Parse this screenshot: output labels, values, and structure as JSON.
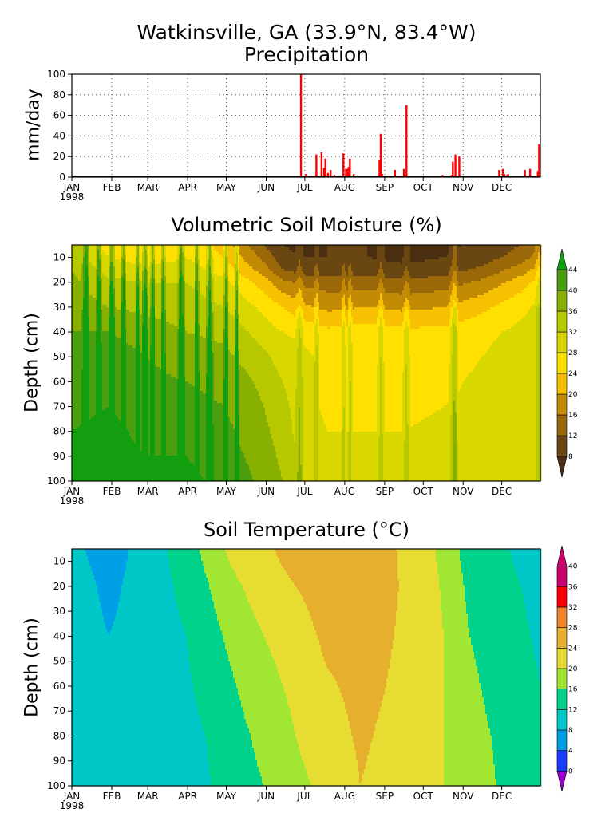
{
  "title": {
    "line1": "Watkinsville, GA  (33.9°N, 83.4°W)",
    "line2": "Precipitation"
  },
  "month_labels": [
    "JAN",
    "FEB",
    "MAR",
    "APR",
    "MAY",
    "JUN",
    "JUL",
    "AUG",
    "SEP",
    "OCT",
    "NOV",
    "DEC"
  ],
  "year_label": "1998",
  "chart_data": [
    {
      "type": "bar",
      "title": "Precipitation",
      "ylabel": "mm/day",
      "ylim": [
        0,
        100
      ],
      "yticks": [
        0,
        20,
        40,
        60,
        80,
        100
      ],
      "xlim": [
        1,
        365
      ],
      "grid": true,
      "bar_color": "#ff0000",
      "x": [
        179,
        183,
        191,
        195,
        197,
        198,
        200,
        202,
        205,
        212,
        214,
        215,
        216,
        217,
        220,
        240,
        241,
        242,
        252,
        259,
        260,
        261,
        289,
        296,
        297,
        299,
        302,
        333,
        336,
        337,
        339,
        340,
        353,
        357,
        363,
        364
      ],
      "values": [
        100,
        3,
        22,
        24,
        9,
        18,
        4,
        7,
        2,
        23,
        8,
        8,
        10,
        18,
        3,
        17,
        42,
        3,
        7,
        8,
        2,
        70,
        2,
        2,
        15,
        22,
        20,
        7,
        8,
        3,
        2,
        3,
        7,
        8,
        6,
        32
      ]
    },
    {
      "type": "heatmap",
      "title": "Volumetric Soil Moisture (%)",
      "ylabel": "Depth (cm)",
      "ylim": [
        5,
        100
      ],
      "yticks": [
        10,
        20,
        30,
        40,
        50,
        60,
        70,
        80,
        90,
        100
      ],
      "colorbar": {
        "levels": [
          8,
          12,
          16,
          20,
          24,
          28,
          32,
          36,
          40,
          44
        ],
        "colors": [
          "#4a2e10",
          "#6a4712",
          "#9a6808",
          "#c38a04",
          "#f7c000",
          "#ffe000",
          "#d8d800",
          "#b8c800",
          "#88b000",
          "#4b9e10",
          "#139e10"
        ]
      },
      "depth_profiles": {
        "depths": [
          5,
          10,
          15,
          20,
          30,
          40,
          50,
          60,
          70,
          80,
          90,
          100
        ],
        "samples": [
          {
            "day": 1,
            "values": [
              34,
              35,
              36,
              37,
              38,
              40,
              41,
              42,
              43,
              44,
              45,
              45
            ]
          },
          {
            "day": 30,
            "values": [
              26,
              28,
              30,
              33,
              36,
              40,
              42,
              43,
              44,
              45,
              45,
              45
            ]
          },
          {
            "day": 60,
            "values": [
              24,
              26,
              29,
              32,
              35,
              38,
              40,
              41,
              42,
              43,
              44,
              45
            ]
          },
          {
            "day": 90,
            "values": [
              26,
              28,
              30,
              32,
              34,
              36,
              38,
              40,
              41,
              42,
              44,
              45
            ]
          },
          {
            "day": 120,
            "values": [
              22,
              24,
              26,
              29,
              32,
              35,
              37,
              39,
              40,
              41,
              42,
              43
            ]
          },
          {
            "day": 150,
            "values": [
              12,
              15,
              18,
              22,
              27,
              30,
              33,
              35,
              36,
              37,
              38,
              39
            ]
          },
          {
            "day": 165,
            "values": [
              8,
              9,
              12,
              17,
              24,
              28,
              30,
              32,
              33,
              34,
              35,
              36
            ]
          },
          {
            "day": 180,
            "values": [
              7,
              8,
              10,
              15,
              21,
              27,
              29,
              30,
              30,
              30,
              31,
              32
            ]
          },
          {
            "day": 200,
            "values": [
              8,
              8,
              10,
              14,
              19,
              25,
              27,
              27,
              27,
              28,
              28,
              28
            ]
          },
          {
            "day": 230,
            "values": [
              8,
              8,
              10,
              14,
              20,
              26,
              26,
              27,
              27,
              28,
              29,
              29
            ]
          },
          {
            "day": 260,
            "values": [
              7,
              7,
              9,
              13,
              19,
              25,
              26,
              27,
              27,
              28,
              29,
              29
            ]
          },
          {
            "day": 290,
            "values": [
              7,
              8,
              10,
              14,
              20,
              25,
              26,
              27,
              28,
              29,
              30,
              30
            ]
          },
          {
            "day": 320,
            "values": [
              9,
              10,
              13,
              17,
              23,
              27,
              28,
              29,
              29,
              30,
              30,
              30
            ]
          },
          {
            "day": 350,
            "values": [
              12,
              14,
              18,
              22,
              27,
              29,
              30,
              30,
              30,
              30,
              30,
              30
            ]
          },
          {
            "day": 365,
            "values": [
              16,
              18,
              22,
              26,
              29,
              30,
              30,
              30,
              30,
              30,
              30,
              30
            ]
          }
        ]
      },
      "wet_pulses": [
        {
          "day": 12,
          "width": 3
        },
        {
          "day": 22,
          "width": 2
        },
        {
          "day": 32,
          "width": 3
        },
        {
          "day": 41,
          "width": 2
        },
        {
          "day": 52,
          "width": 2
        },
        {
          "day": 58,
          "width": 3
        },
        {
          "day": 64,
          "width": 2
        },
        {
          "day": 72,
          "width": 2
        },
        {
          "day": 86,
          "width": 3
        },
        {
          "day": 98,
          "width": 2
        },
        {
          "day": 108,
          "width": 3
        },
        {
          "day": 121,
          "width": 2
        },
        {
          "day": 129,
          "width": 2
        },
        {
          "day": 178,
          "width": 3
        },
        {
          "day": 191,
          "width": 2
        },
        {
          "day": 212,
          "width": 2
        },
        {
          "day": 217,
          "width": 2
        },
        {
          "day": 241,
          "width": 3
        },
        {
          "day": 261,
          "width": 3
        },
        {
          "day": 297,
          "width": 3
        },
        {
          "day": 299,
          "width": 2
        },
        {
          "day": 364,
          "width": 3
        }
      ]
    },
    {
      "type": "heatmap",
      "title": "Soil Temperature (°C)",
      "ylabel": "Depth (cm)",
      "ylim": [
        5,
        100
      ],
      "yticks": [
        10,
        20,
        30,
        40,
        50,
        60,
        70,
        80,
        90,
        100
      ],
      "colorbar": {
        "levels": [
          0,
          4,
          8,
          12,
          16,
          20,
          24,
          28,
          32,
          36,
          40
        ],
        "colors": [
          "#9600c8",
          "#1e3cff",
          "#00a0e6",
          "#00c8c8",
          "#00d28c",
          "#a0e632",
          "#e6dc32",
          "#e6af2d",
          "#f08228",
          "#fa0000",
          "#c8006e",
          "#c8006e"
        ]
      },
      "depth_profiles": {
        "depths": [
          5,
          20,
          40,
          60,
          80,
          100
        ],
        "samples": [
          {
            "day": 1,
            "values": [
              9,
              10,
              10,
              11,
              12,
              12
            ]
          },
          {
            "day": 30,
            "values": [
              6,
              7,
              8,
              9,
              10,
              10.5
            ]
          },
          {
            "day": 60,
            "values": [
              10,
              10,
              10,
              10,
              10,
              10.5
            ]
          },
          {
            "day": 90,
            "values": [
              14,
              13,
              12,
              11.5,
              11,
              11
            ]
          },
          {
            "day": 105,
            "values": [
              17,
              15.5,
              14,
              13,
              12,
              11.5
            ]
          },
          {
            "day": 125,
            "values": [
              21,
              19,
              17,
              15.5,
              14.5,
              14
            ]
          },
          {
            "day": 150,
            "values": [
              23,
              22,
              20,
              18.5,
              17,
              16
            ]
          },
          {
            "day": 175,
            "values": [
              26,
              24,
              22,
              21,
              20,
              19
            ]
          },
          {
            "day": 200,
            "values": [
              27,
              26,
              25,
              23.5,
              22.5,
              21
            ]
          },
          {
            "day": 225,
            "values": [
              27,
              26.5,
              26,
              25,
              24.5,
              24
            ]
          },
          {
            "day": 245,
            "values": [
              25,
              25,
              24.5,
              24,
              23.5,
              23
            ]
          },
          {
            "day": 270,
            "values": [
              22,
              22.5,
              22.5,
              22,
              22,
              21.5
            ]
          },
          {
            "day": 290,
            "values": [
              19,
              19.5,
              20,
              20,
              20,
              20
            ]
          },
          {
            "day": 310,
            "values": [
              14,
              15,
              16,
              17,
              18,
              18.5
            ]
          },
          {
            "day": 335,
            "values": [
              12.5,
              13,
              13.5,
              14,
              15,
              15.5
            ]
          },
          {
            "day": 365,
            "values": [
              10,
              11,
              11.5,
              12,
              12.5,
              13
            ]
          }
        ]
      }
    }
  ]
}
